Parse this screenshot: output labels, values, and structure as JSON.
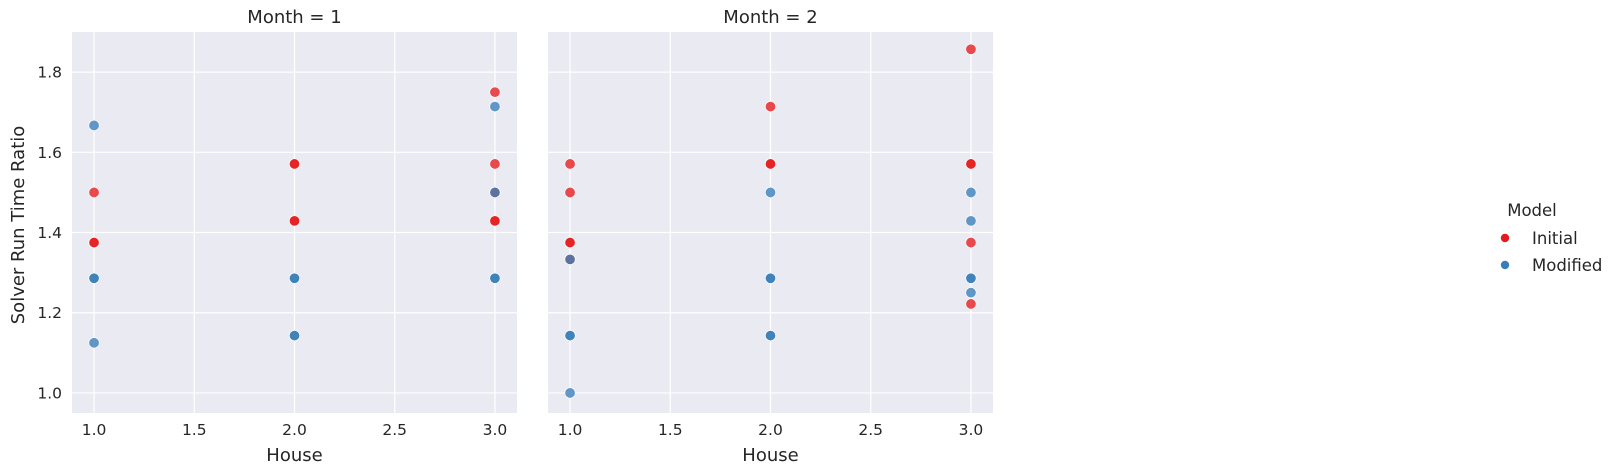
{
  "chart_data": {
    "type": "scatter",
    "ylabel": "Solver Run Time Ratio",
    "ylim": [
      0.95,
      1.9
    ],
    "yticks": [
      1.0,
      1.2,
      1.4,
      1.6,
      1.8
    ],
    "ytick_labels": [
      "1.0",
      "1.2",
      "1.4",
      "1.6",
      "1.8"
    ],
    "xlim": [
      0.89,
      3.11
    ],
    "xticks": [
      1.0,
      1.5,
      2.0,
      2.5,
      3.0
    ],
    "xtick_labels": [
      "1.0",
      "1.5",
      "2.0",
      "2.5",
      "3.0"
    ],
    "grid": true,
    "legend": {
      "title": "Model",
      "placement": "right",
      "entries": [
        {
          "name": "Initial",
          "color": "#e41a1c"
        },
        {
          "name": "Modified",
          "color": "#377eb8"
        }
      ]
    },
    "panels": [
      {
        "title": "Month = 1",
        "xlabel": "House",
        "series": [
          {
            "name": "Initial",
            "points": [
              {
                "x": 1,
                "y": 1.5
              },
              {
                "x": 1,
                "y": 1.375
              },
              {
                "x": 1,
                "y": 1.375
              },
              {
                "x": 2,
                "y": 1.571
              },
              {
                "x": 2,
                "y": 1.571
              },
              {
                "x": 2,
                "y": 1.429
              },
              {
                "x": 2,
                "y": 1.429
              },
              {
                "x": 3,
                "y": 1.75
              },
              {
                "x": 3,
                "y": 1.571
              },
              {
                "x": 3,
                "y": 1.5
              },
              {
                "x": 3,
                "y": 1.429
              },
              {
                "x": 3,
                "y": 1.429
              }
            ]
          },
          {
            "name": "Modified",
            "points": [
              {
                "x": 1,
                "y": 1.667
              },
              {
                "x": 1,
                "y": 1.286
              },
              {
                "x": 1,
                "y": 1.286
              },
              {
                "x": 1,
                "y": 1.125
              },
              {
                "x": 2,
                "y": 1.286
              },
              {
                "x": 2,
                "y": 1.286
              },
              {
                "x": 2,
                "y": 1.143
              },
              {
                "x": 2,
                "y": 1.143
              },
              {
                "x": 3,
                "y": 1.714
              },
              {
                "x": 3,
                "y": 1.5
              },
              {
                "x": 3,
                "y": 1.286
              },
              {
                "x": 3,
                "y": 1.286
              }
            ]
          }
        ]
      },
      {
        "title": "Month = 2",
        "xlabel": "House",
        "series": [
          {
            "name": "Initial",
            "points": [
              {
                "x": 1,
                "y": 1.571
              },
              {
                "x": 1,
                "y": 1.5
              },
              {
                "x": 1,
                "y": 1.375
              },
              {
                "x": 1,
                "y": 1.375
              },
              {
                "x": 1,
                "y": 1.333
              },
              {
                "x": 2,
                "y": 1.714
              },
              {
                "x": 2,
                "y": 1.571
              },
              {
                "x": 2,
                "y": 1.571
              },
              {
                "x": 3,
                "y": 1.857
              },
              {
                "x": 3,
                "y": 1.571
              },
              {
                "x": 3,
                "y": 1.571
              },
              {
                "x": 3,
                "y": 1.375
              },
              {
                "x": 3,
                "y": 1.222
              }
            ]
          },
          {
            "name": "Modified",
            "points": [
              {
                "x": 1,
                "y": 1.333
              },
              {
                "x": 1,
                "y": 1.143
              },
              {
                "x": 1,
                "y": 1.143
              },
              {
                "x": 1,
                "y": 1.0
              },
              {
                "x": 2,
                "y": 1.5
              },
              {
                "x": 2,
                "y": 1.286
              },
              {
                "x": 2,
                "y": 1.286
              },
              {
                "x": 2,
                "y": 1.143
              },
              {
                "x": 2,
                "y": 1.143
              },
              {
                "x": 3,
                "y": 1.5
              },
              {
                "x": 3,
                "y": 1.429
              },
              {
                "x": 3,
                "y": 1.286
              },
              {
                "x": 3,
                "y": 1.286
              },
              {
                "x": 3,
                "y": 1.25
              }
            ]
          }
        ]
      }
    ]
  }
}
